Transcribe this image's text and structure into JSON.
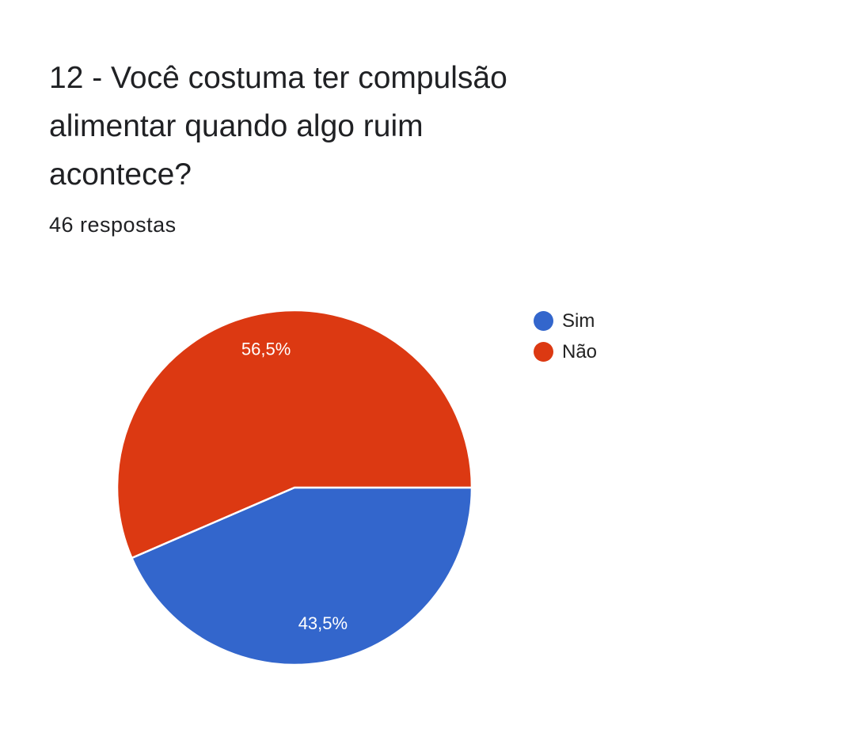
{
  "header": {
    "title_lines": [
      "12 - Você costuma ter compulsão",
      "alimentar quando algo ruim",
      "acontece?"
    ],
    "responses": "46 respostas"
  },
  "chart_data": {
    "type": "pie",
    "title": "12 - Você costuma ter compulsão alimentar quando algo ruim acontece?",
    "slices": [
      {
        "label": "Sim",
        "value": 43.5,
        "display": "43,5%",
        "color": "#3366cc"
      },
      {
        "label": "Não",
        "value": 56.5,
        "display": "56,5%",
        "color": "#dc3912"
      }
    ],
    "legend_position": "right"
  }
}
